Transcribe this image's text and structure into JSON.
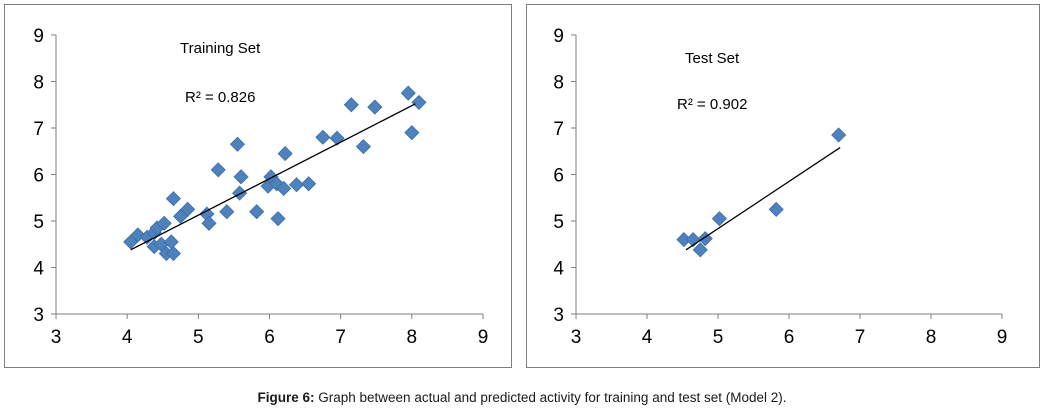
{
  "caption": {
    "label": "Figure 6:",
    "text": " Graph between actual and predicted activity for training and test set (Model 2)."
  },
  "chart_data": [
    {
      "type": "scatter",
      "title": "Training Set",
      "annotation": "R² = 0.826",
      "xlim": [
        3,
        9
      ],
      "ylim": [
        3,
        9
      ],
      "xticks": [
        3,
        4,
        5,
        6,
        7,
        8,
        9
      ],
      "yticks": [
        3,
        4,
        5,
        6,
        7,
        8,
        9
      ],
      "marker": "diamond",
      "marker_color": "#4f81bd",
      "trendline": {
        "x": [
          4.05,
          8.05
        ],
        "y": [
          4.38,
          7.52
        ]
      },
      "points": [
        [
          4.05,
          4.55
        ],
        [
          4.15,
          4.7
        ],
        [
          4.28,
          4.65
        ],
        [
          4.38,
          4.75
        ],
        [
          4.42,
          4.85
        ],
        [
          4.38,
          4.45
        ],
        [
          4.48,
          4.5
        ],
        [
          4.52,
          4.95
        ],
        [
          4.55,
          4.3
        ],
        [
          4.62,
          4.55
        ],
        [
          4.65,
          4.3
        ],
        [
          4.65,
          5.48
        ],
        [
          4.75,
          5.1
        ],
        [
          4.85,
          5.25
        ],
        [
          5.12,
          5.15
        ],
        [
          5.15,
          4.95
        ],
        [
          5.28,
          6.1
        ],
        [
          5.4,
          5.2
        ],
        [
          5.55,
          6.65
        ],
        [
          5.58,
          5.6
        ],
        [
          5.6,
          5.95
        ],
        [
          5.82,
          5.2
        ],
        [
          5.98,
          5.75
        ],
        [
          6.02,
          5.95
        ],
        [
          6.1,
          5.8
        ],
        [
          6.12,
          5.05
        ],
        [
          6.2,
          5.7
        ],
        [
          6.22,
          6.45
        ],
        [
          6.38,
          5.78
        ],
        [
          6.55,
          5.8
        ],
        [
          6.75,
          6.8
        ],
        [
          6.95,
          6.78
        ],
        [
          7.15,
          7.5
        ],
        [
          7.32,
          6.6
        ],
        [
          7.48,
          7.45
        ],
        [
          7.95,
          7.75
        ],
        [
          8.0,
          6.9
        ],
        [
          8.1,
          7.55
        ]
      ]
    },
    {
      "type": "scatter",
      "title": "Test Set",
      "annotation": "R² = 0.902",
      "xlim": [
        3,
        9
      ],
      "ylim": [
        3,
        9
      ],
      "xticks": [
        3,
        4,
        5,
        6,
        7,
        8,
        9
      ],
      "yticks": [
        3,
        4,
        5,
        6,
        7,
        8,
        9
      ],
      "marker": "diamond",
      "marker_color": "#4f81bd",
      "trendline": {
        "x": [
          4.55,
          6.72
        ],
        "y": [
          4.38,
          6.58
        ]
      },
      "points": [
        [
          4.52,
          4.6
        ],
        [
          4.65,
          4.6
        ],
        [
          4.75,
          4.38
        ],
        [
          4.82,
          4.62
        ],
        [
          5.02,
          5.05
        ],
        [
          5.82,
          5.25
        ],
        [
          6.7,
          6.85
        ]
      ]
    }
  ]
}
